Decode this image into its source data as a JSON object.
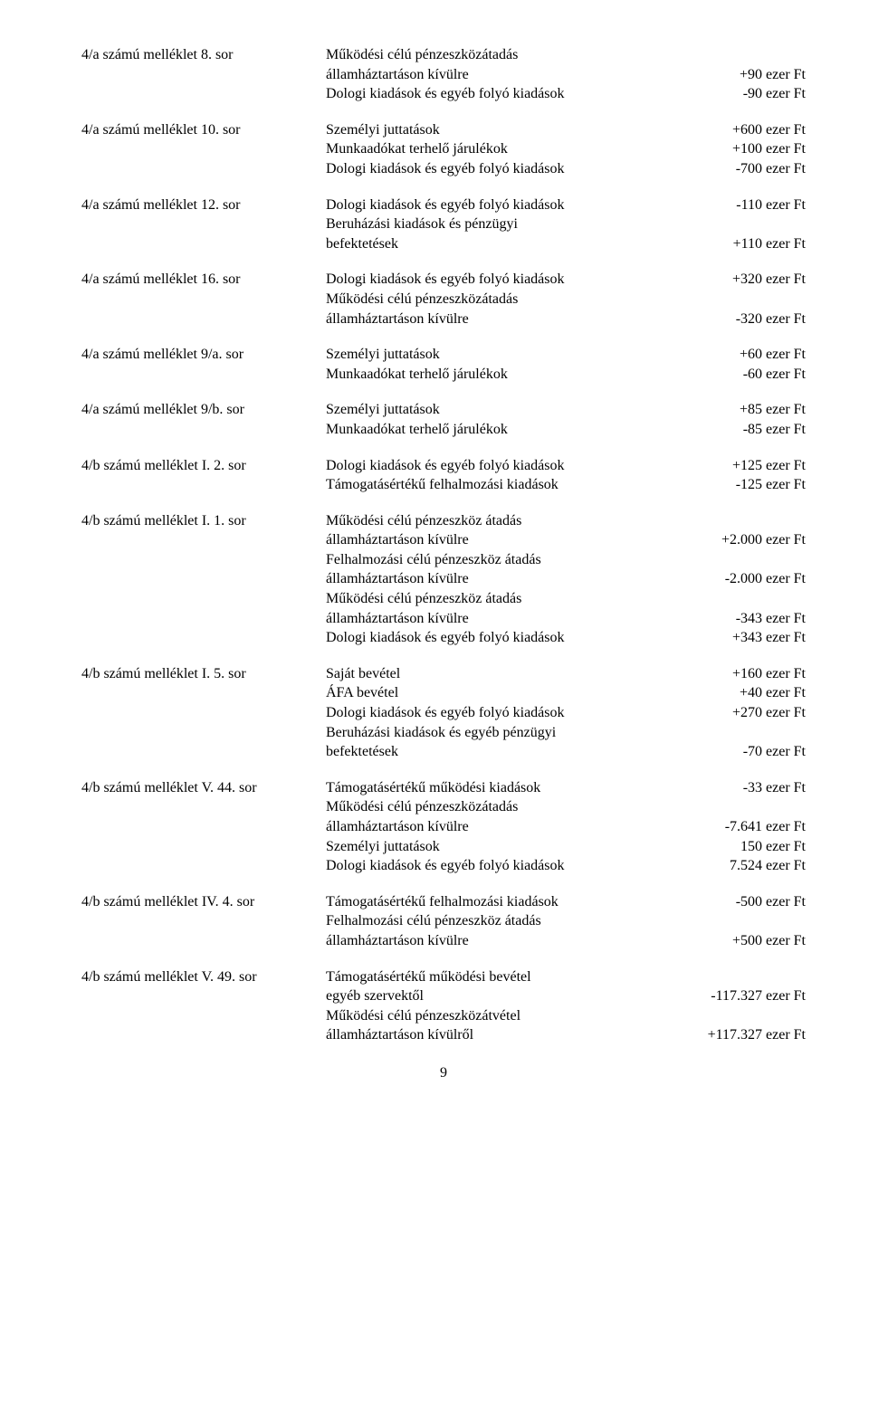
{
  "entries": [
    {
      "label": "4/a számú melléklet 8. sor",
      "items": [
        {
          "desc_lines": [
            "Működési célú pénzeszközátadás",
            "államháztartáson kívülre"
          ],
          "value": "+90 ezer Ft"
        },
        {
          "desc_lines": [
            "Dologi kiadások és egyéb folyó kiadások"
          ],
          "value": "-90 ezer Ft"
        }
      ]
    },
    {
      "label": "4/a számú melléklet 10. sor",
      "items": [
        {
          "desc_lines": [
            "Személyi juttatások"
          ],
          "value": "+600 ezer Ft"
        },
        {
          "desc_lines": [
            "Munkaadókat terhelő járulékok"
          ],
          "value": "+100 ezer Ft"
        },
        {
          "desc_lines": [
            "Dologi kiadások és egyéb folyó kiadások"
          ],
          "value": "-700 ezer Ft"
        }
      ]
    },
    {
      "label": "4/a számú melléklet 12. sor",
      "items": [
        {
          "desc_lines": [
            "Dologi kiadások és egyéb folyó kiadások"
          ],
          "value": "-110 ezer Ft"
        },
        {
          "desc_lines": [
            "Beruházási kiadások és pénzügyi",
            "befektetések"
          ],
          "value": "+110 ezer Ft"
        }
      ]
    },
    {
      "label": "4/a számú melléklet 16. sor",
      "items": [
        {
          "desc_lines": [
            "Dologi kiadások és egyéb folyó kiadások"
          ],
          "value": "+320 ezer Ft"
        },
        {
          "desc_lines": [
            "Működési célú pénzeszközátadás",
            "államháztartáson kívülre"
          ],
          "value": "-320 ezer Ft"
        }
      ]
    },
    {
      "label": "4/a számú melléklet 9/a. sor",
      "items": [
        {
          "desc_lines": [
            "Személyi juttatások"
          ],
          "value": "+60 ezer Ft"
        },
        {
          "desc_lines": [
            "Munkaadókat terhelő járulékok"
          ],
          "value": "-60 ezer Ft"
        }
      ]
    },
    {
      "label": "4/a számú melléklet 9/b. sor",
      "items": [
        {
          "desc_lines": [
            "Személyi juttatások"
          ],
          "value": "+85 ezer Ft"
        },
        {
          "desc_lines": [
            "Munkaadókat terhelő járulékok"
          ],
          "value": "-85 ezer Ft"
        }
      ]
    },
    {
      "label": "4/b számú melléklet I. 2. sor",
      "items": [
        {
          "desc_lines": [
            "Dologi kiadások és egyéb folyó kiadások"
          ],
          "value": "+125 ezer Ft"
        },
        {
          "desc_lines": [
            "Támogatásértékű felhalmozási kiadások"
          ],
          "value": "-125 ezer Ft"
        }
      ]
    },
    {
      "label": "4/b számú melléklet I. 1. sor",
      "items": [
        {
          "desc_lines": [
            "Működési célú pénzeszköz átadás",
            "államháztartáson kívülre"
          ],
          "value": "+2.000 ezer Ft"
        },
        {
          "desc_lines": [
            "Felhalmozási célú pénzeszköz átadás",
            "államháztartáson kívülre"
          ],
          "value": "-2.000 ezer Ft"
        },
        {
          "desc_lines": [
            "Működési célú pénzeszköz átadás",
            "államháztartáson kívülre"
          ],
          "value": "-343 ezer Ft"
        },
        {
          "desc_lines": [
            "Dologi kiadások és egyéb folyó kiadások"
          ],
          "value": "+343 ezer Ft"
        }
      ]
    },
    {
      "label": "4/b számú melléklet I. 5. sor",
      "items": [
        {
          "desc_lines": [
            "Saját bevétel"
          ],
          "value": "+160 ezer Ft"
        },
        {
          "desc_lines": [
            "ÁFA bevétel"
          ],
          "value": "+40 ezer Ft"
        },
        {
          "desc_lines": [
            "Dologi kiadások és egyéb folyó kiadások"
          ],
          "value": "+270 ezer Ft"
        },
        {
          "desc_lines": [
            "Beruházási kiadások és egyéb pénzügyi",
            "befektetések"
          ],
          "value": "-70 ezer Ft"
        }
      ]
    },
    {
      "label": "4/b számú melléklet V. 44. sor",
      "items": [
        {
          "desc_lines": [
            "Támogatásértékű működési kiadások"
          ],
          "value": "-33 ezer Ft"
        },
        {
          "desc_lines": [
            "Működési célú pénzeszközátadás",
            "államháztartáson kívülre"
          ],
          "value": "-7.641 ezer Ft"
        },
        {
          "desc_lines": [
            "Személyi juttatások"
          ],
          "value": "150 ezer Ft"
        },
        {
          "desc_lines": [
            "Dologi kiadások és egyéb folyó kiadások"
          ],
          "value": "7.524 ezer Ft"
        }
      ]
    },
    {
      "label": "4/b számú melléklet IV. 4. sor",
      "items": [
        {
          "desc_lines": [
            "Támogatásértékű felhalmozási kiadások"
          ],
          "value": "-500 ezer Ft"
        },
        {
          "desc_lines": [
            "Felhalmozási célú pénzeszköz átadás",
            "államháztartáson kívülre"
          ],
          "value": "+500 ezer Ft"
        }
      ]
    },
    {
      "label": "4/b számú melléklet V. 49. sor",
      "items": [
        {
          "desc_lines": [
            "Támogatásértékű működési bevétel",
            "egyéb szervektől"
          ],
          "value": "-117.327 ezer Ft"
        },
        {
          "desc_lines": [
            "Működési célú pénzeszközátvétel",
            "államháztartáson kívülről"
          ],
          "value": "+117.327 ezer Ft"
        }
      ]
    }
  ],
  "page_number": "9"
}
